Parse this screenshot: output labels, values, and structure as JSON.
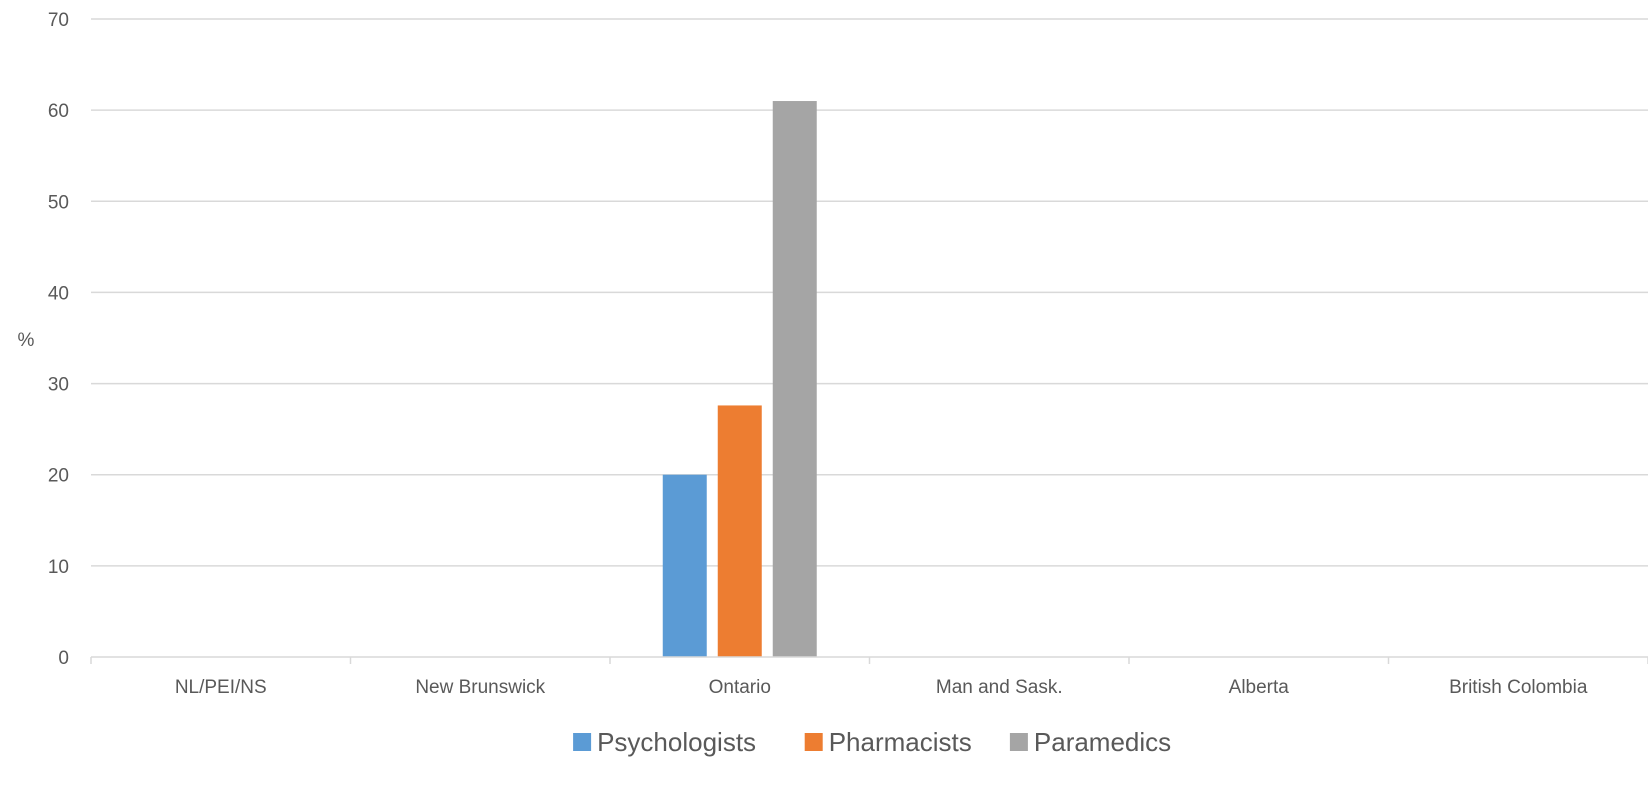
{
  "chart_data": {
    "type": "bar",
    "title": "",
    "xlabel": "",
    "ylabel": "%",
    "ylim": [
      0,
      70
    ],
    "yticks": [
      0,
      10,
      20,
      30,
      40,
      50,
      60,
      70
    ],
    "grid": true,
    "legend_position": "bottom",
    "categories": [
      "NL/PEI/NS",
      "New Brunswick",
      "Ontario",
      "Man and Sask.",
      "Alberta",
      "British Colombia"
    ],
    "series": [
      {
        "name": "Psychologists",
        "color": "#5B9BD5",
        "values": [
          0,
          0,
          20,
          0,
          0,
          0
        ]
      },
      {
        "name": "Pharmacists",
        "color": "#ED7D31",
        "values": [
          0,
          0,
          27.6,
          0,
          0,
          0
        ]
      },
      {
        "name": "Paramedics",
        "color": "#A5A5A5",
        "values": [
          0,
          0,
          61,
          0,
          0,
          0
        ]
      }
    ]
  }
}
